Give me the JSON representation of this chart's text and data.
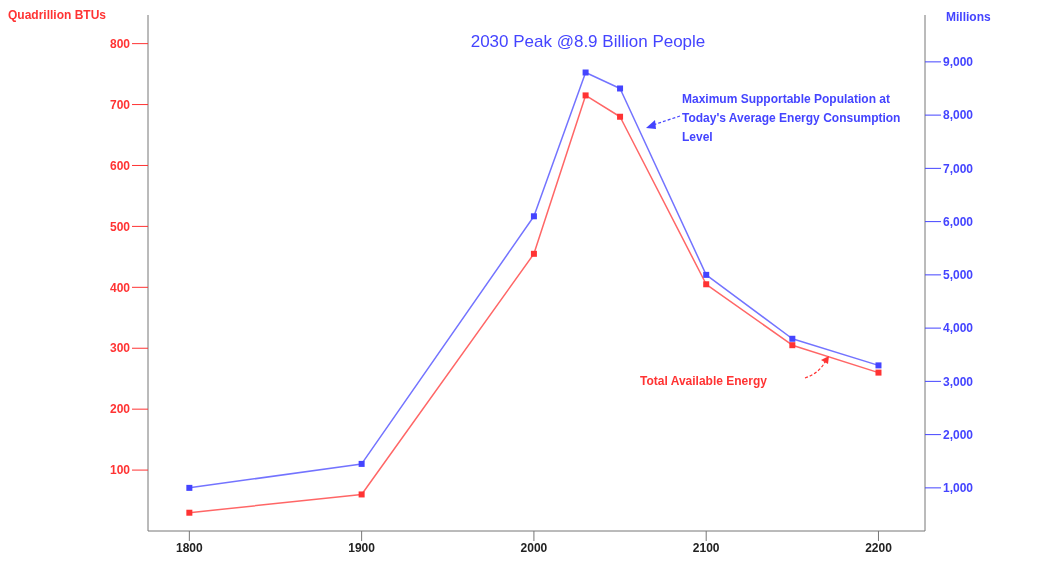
{
  "chart_data": {
    "type": "line",
    "title": "2030 Peak @8.9 Billion People",
    "ylabel": "Quadrillion BTUs",
    "y2label": "Millions",
    "x": [
      1800,
      1900,
      2000,
      2030,
      2050,
      2100,
      2150,
      2200
    ],
    "xlim": [
      1776,
      2227
    ],
    "xticks": [
      1800,
      1900,
      2000,
      2100,
      2200
    ],
    "ylim": [
      0,
      847
    ],
    "yticks": [
      100,
      200,
      300,
      400,
      500,
      600,
      700,
      800
    ],
    "y2lim": [
      190,
      9880
    ],
    "y2ticks": [
      {
        "value": 1000,
        "label": "1,000"
      },
      {
        "value": 2000,
        "label": "2,000"
      },
      {
        "value": 3000,
        "label": "3,000"
      },
      {
        "value": 4000,
        "label": "4,000"
      },
      {
        "value": 5000,
        "label": "5,000"
      },
      {
        "value": 6000,
        "label": "6,000"
      },
      {
        "value": 7000,
        "label": "7,000"
      },
      {
        "value": 8000,
        "label": "8,000"
      },
      {
        "value": 9000,
        "label": "9,000"
      }
    ],
    "series": [
      {
        "name": "Total Available Energy",
        "color": "#ff3333",
        "values": [
          30,
          60,
          455,
          715,
          680,
          405,
          305,
          260
        ]
      },
      {
        "name": "Maximum Supportable Population at Today's Average Energy Consumption Level",
        "color": "#4444ff",
        "axis": "y2",
        "values": [
          1000,
          1450,
          6100,
          8800,
          8500,
          5000,
          3800,
          3300
        ]
      }
    ],
    "grid": false,
    "legend": "top right",
    "marker": "square",
    "line_style": "solid"
  }
}
